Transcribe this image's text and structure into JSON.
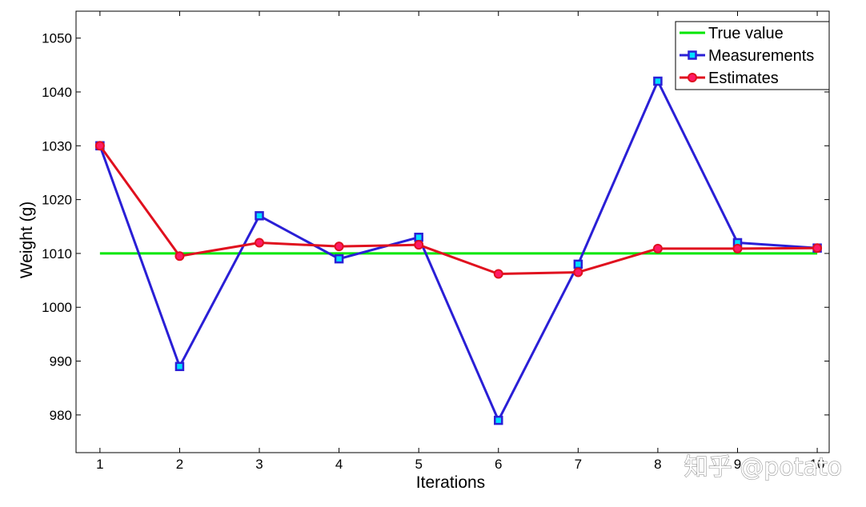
{
  "chart_data": {
    "type": "line",
    "xlabel": "Iterations",
    "ylabel": "Weight (g)",
    "xlim": [
      0.7,
      10.15
    ],
    "ylim": [
      973,
      1055
    ],
    "xticks": [
      1,
      2,
      3,
      4,
      5,
      6,
      7,
      8,
      9,
      10
    ],
    "yticks": [
      980,
      990,
      1000,
      1010,
      1020,
      1030,
      1040,
      1050
    ],
    "grid": false,
    "legend_position": "top-right",
    "x": [
      1,
      2,
      3,
      4,
      5,
      6,
      7,
      8,
      9,
      10
    ],
    "series": [
      {
        "name": "True value",
        "color": "#00e600",
        "marker": "none",
        "values": [
          1010,
          1010,
          1010,
          1010,
          1010,
          1010,
          1010,
          1010,
          1010,
          1010
        ]
      },
      {
        "name": "Measurements",
        "color": "#2a1fd6",
        "marker": "square",
        "marker_fill": "#00e0ff",
        "values": [
          1030,
          989,
          1017,
          1009,
          1013,
          979,
          1008,
          1042,
          1012,
          1011
        ]
      },
      {
        "name": "Estimates",
        "color": "#e0101e",
        "marker": "circle",
        "marker_fill": "#ff1a66",
        "values": [
          1030,
          1009.5,
          1012,
          1011.3,
          1011.6,
          1006.2,
          1006.5,
          1010.9,
          1010.9,
          1011
        ]
      }
    ]
  },
  "watermark": "知乎 @potato"
}
